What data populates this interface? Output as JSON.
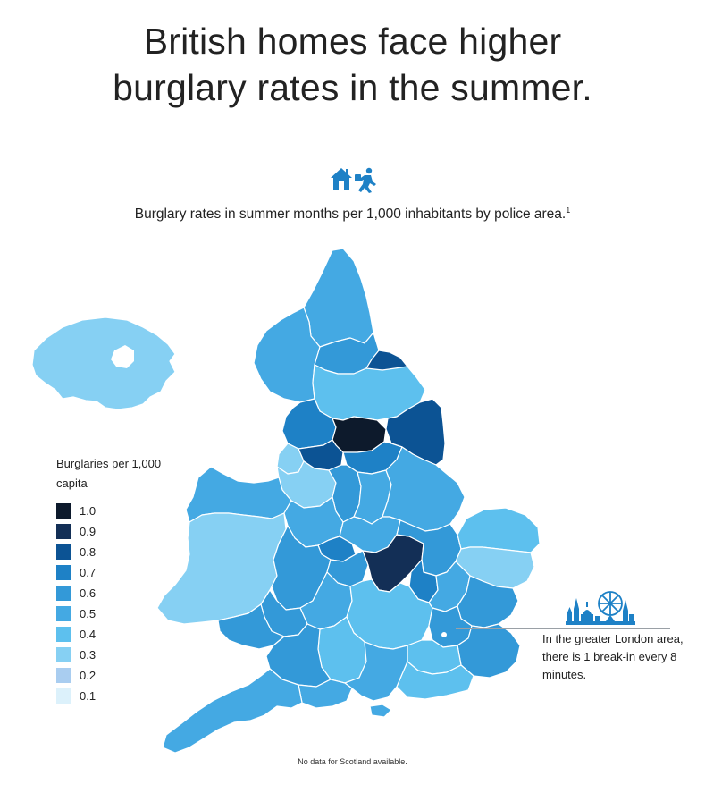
{
  "title": {
    "line1": "British homes face higher",
    "line2": "burglary rates in the summer."
  },
  "subtitle": {
    "text": "Burglary rates in summer months per 1,000 inhabitants by police area.",
    "footnote_marker": "1"
  },
  "icons": {
    "house": "house-icon",
    "burglar": "running-burglar-icon",
    "skyline": "london-skyline-icon"
  },
  "legend": {
    "title": "Burglaries per 1,000 capita",
    "items": [
      {
        "label": "1.0",
        "value": 1.0,
        "color": "#0d1a2c"
      },
      {
        "label": "0.9",
        "value": 0.9,
        "color": "#132f56"
      },
      {
        "label": "0.8",
        "value": 0.8,
        "color": "#0c5394"
      },
      {
        "label": "0.7",
        "value": 0.7,
        "color": "#1e81c6"
      },
      {
        "label": "0.6",
        "value": 0.6,
        "color": "#3399d8"
      },
      {
        "label": "0.5",
        "value": 0.5,
        "color": "#44a9e3"
      },
      {
        "label": "0.4",
        "value": 0.4,
        "color": "#5dc0ee"
      },
      {
        "label": "0.3",
        "value": 0.3,
        "color": "#86d0f3"
      },
      {
        "label": "0.2",
        "value": 0.2,
        "color": "#a9cdf0"
      },
      {
        "label": "0.1",
        "value": 0.1,
        "color": "#dcf1fb"
      }
    ]
  },
  "london_note": "In the greater London area, there is 1 break-in every 8 minutes.",
  "footnote": "No data for Scotland available."
}
